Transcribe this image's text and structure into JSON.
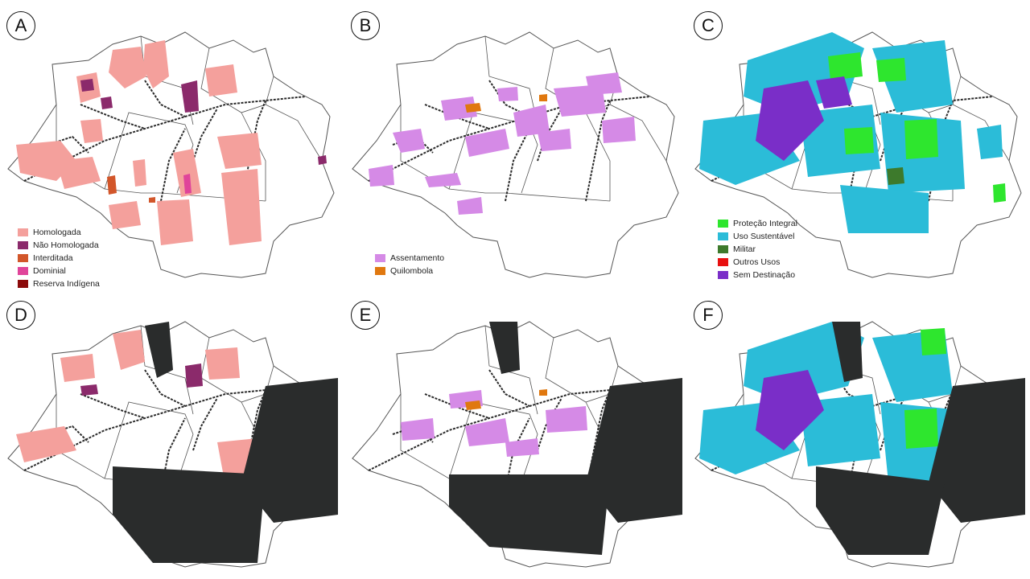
{
  "panels": [
    {
      "letter": "A",
      "legend": [
        {
          "label": "Homologada",
          "color": "#f4a09c"
        },
        {
          "label": "Não Homologada",
          "color": "#8b2a6b"
        },
        {
          "label": "Interditada",
          "color": "#d2562a"
        },
        {
          "label": "Dominial",
          "color": "#e0449a"
        },
        {
          "label": "Reserva Indígena",
          "color": "#8b0a0a"
        }
      ]
    },
    {
      "letter": "B",
      "legend": [
        {
          "label": "Assentamento",
          "color": "#d58ae6"
        },
        {
          "label": "Quilombola",
          "color": "#e0780f"
        }
      ]
    },
    {
      "letter": "C",
      "legend": [
        {
          "label": "Proteção Integral",
          "color": "#2ee62e"
        },
        {
          "label": "Uso Sustentável",
          "color": "#2bbcd8"
        },
        {
          "label": "Militar",
          "color": "#3d7a2c"
        },
        {
          "label": "Outros Usos",
          "color": "#e81010"
        },
        {
          "label": "Sem Destinação",
          "color": "#7a2ec8"
        }
      ]
    },
    {
      "letter": "D",
      "legend": []
    },
    {
      "letter": "E",
      "legend": []
    },
    {
      "letter": "F",
      "legend": []
    }
  ],
  "colors": {
    "river": "#2b2b2b",
    "border": "#555555",
    "deforestation": "#2a2c2c"
  }
}
